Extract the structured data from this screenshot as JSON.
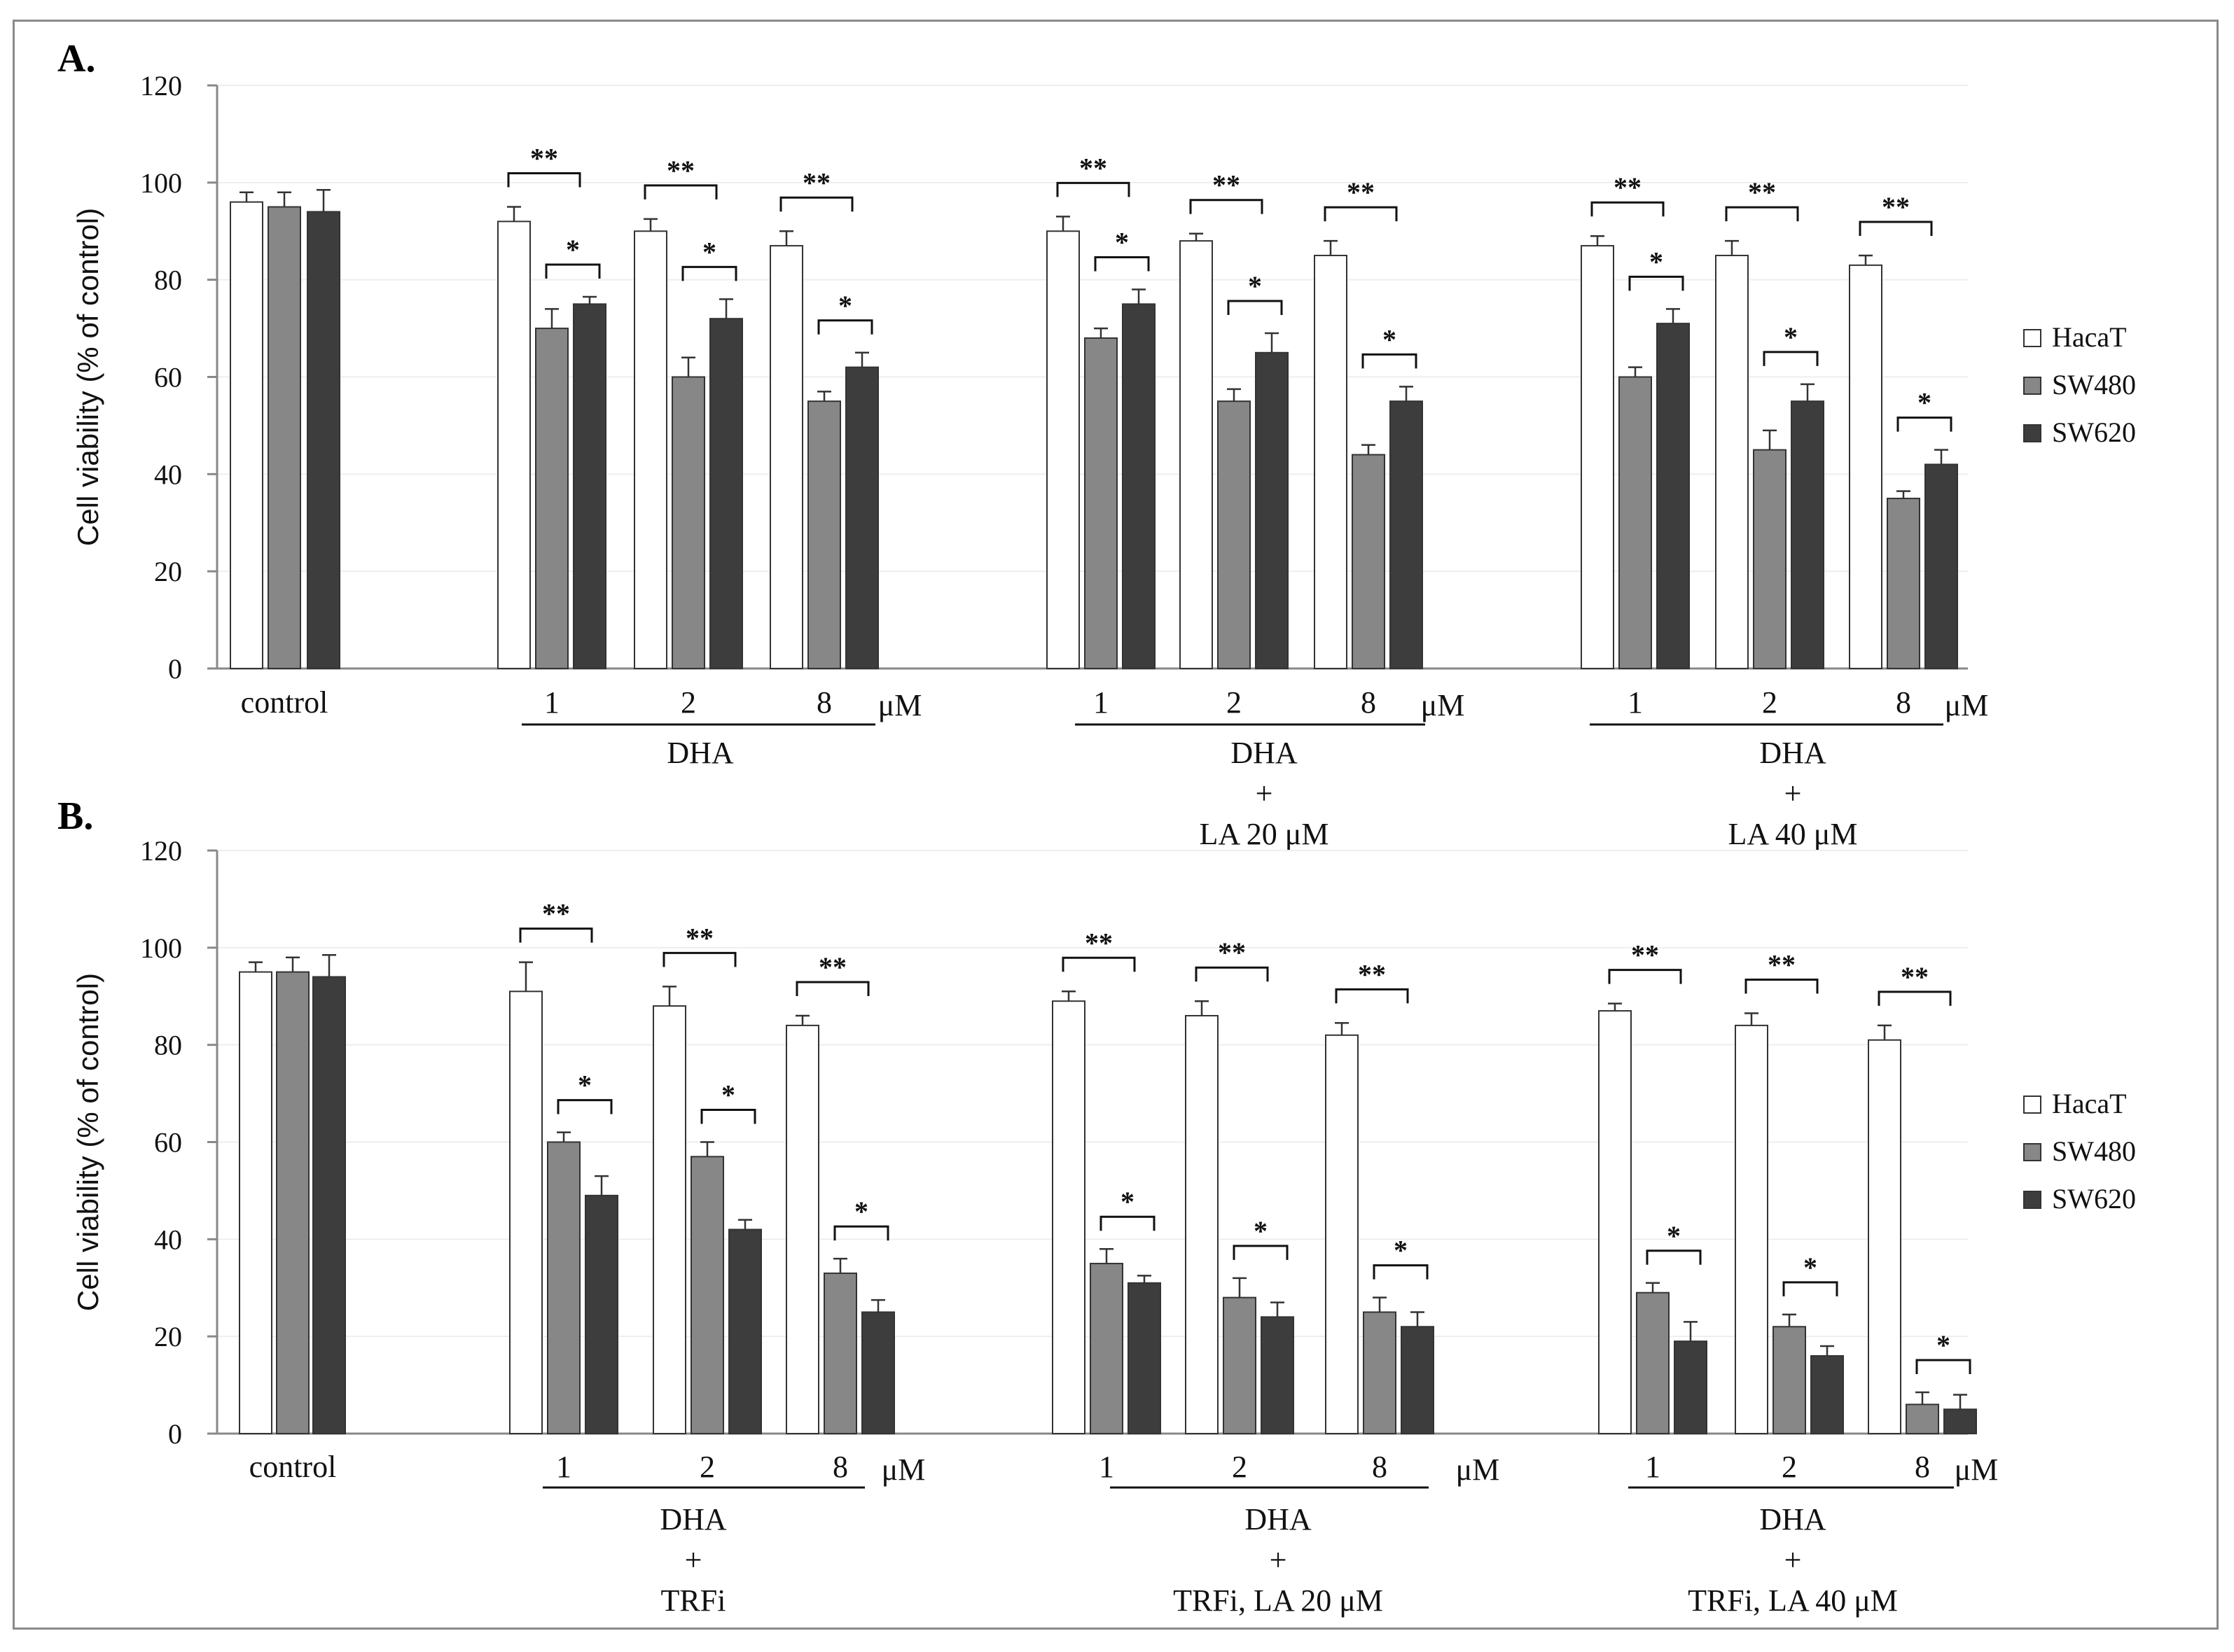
{
  "colors": {
    "hacat": "#ffffff",
    "sw480": "#878787",
    "sw620": "#3d3d3d",
    "axis": "#888888",
    "ink": "#111111"
  },
  "legend": [
    {
      "label": "HacaT",
      "series": "hacat"
    },
    {
      "label": "SW480",
      "series": "sw480"
    },
    {
      "label": "SW620",
      "series": "sw620"
    }
  ],
  "chart_data": [
    {
      "panel": "A.",
      "type": "bar",
      "ylabel": "Cell viability (% of control)",
      "ylim": [
        0,
        120
      ],
      "yticks": [
        0,
        20,
        40,
        60,
        80,
        100,
        120
      ],
      "series_names": [
        "HacaT",
        "SW480",
        "SW620"
      ],
      "control": {
        "label": "control",
        "values": [
          96,
          95,
          94
        ],
        "errors": [
          2,
          3,
          4.5
        ]
      },
      "groups": [
        {
          "label_lines": [
            "DHA"
          ],
          "unit": "μM",
          "categories": [
            "1",
            "2",
            "8"
          ],
          "values": [
            [
              92,
              70,
              75
            ],
            [
              90,
              60,
              72
            ],
            [
              87,
              55,
              62
            ]
          ],
          "errors": [
            [
              3,
              4,
              1.5
            ],
            [
              2.5,
              4,
              4
            ],
            [
              3,
              2,
              3
            ]
          ],
          "sig": [
            [
              "**",
              "*"
            ],
            [
              "**",
              "*"
            ],
            [
              "**",
              "*"
            ]
          ]
        },
        {
          "label_lines": [
            "DHA",
            "+",
            "LA 20 μM"
          ],
          "unit": "μM",
          "categories": [
            "1",
            "2",
            "8"
          ],
          "values": [
            [
              90,
              68,
              75
            ],
            [
              88,
              55,
              65
            ],
            [
              85,
              44,
              55
            ]
          ],
          "errors": [
            [
              3,
              2,
              3
            ],
            [
              1.5,
              2.5,
              4
            ],
            [
              3,
              2,
              3
            ]
          ],
          "sig": [
            [
              "**",
              "*"
            ],
            [
              "**",
              "*"
            ],
            [
              "**",
              "*"
            ]
          ]
        },
        {
          "label_lines": [
            "DHA",
            "+",
            "LA 40 μM"
          ],
          "unit": "μM",
          "categories": [
            "1",
            "2",
            "8"
          ],
          "values": [
            [
              87,
              60,
              71
            ],
            [
              85,
              45,
              55
            ],
            [
              83,
              35,
              42
            ]
          ],
          "errors": [
            [
              2,
              2,
              3
            ],
            [
              3,
              4,
              3.5
            ],
            [
              2,
              1.5,
              3
            ]
          ],
          "sig": [
            [
              "**",
              "*"
            ],
            [
              "**",
              "*"
            ],
            [
              "**",
              "*"
            ]
          ]
        }
      ]
    },
    {
      "panel": "B.",
      "type": "bar",
      "ylabel": "Cell viability (% of control)",
      "ylim": [
        0,
        120
      ],
      "yticks": [
        0,
        20,
        40,
        60,
        80,
        100,
        120
      ],
      "series_names": [
        "HacaT",
        "SW480",
        "SW620"
      ],
      "control": {
        "label": "control",
        "values": [
          95,
          95,
          94
        ],
        "errors": [
          2,
          3,
          4.5
        ]
      },
      "groups": [
        {
          "label_lines": [
            "DHA",
            "+",
            "TRFi"
          ],
          "unit": "μM",
          "categories": [
            "1",
            "2",
            "8"
          ],
          "values": [
            [
              91,
              60,
              49
            ],
            [
              88,
              57,
              42
            ],
            [
              84,
              33,
              25
            ]
          ],
          "errors": [
            [
              6,
              2,
              4
            ],
            [
              4,
              3,
              2
            ],
            [
              2,
              3,
              2.5
            ]
          ],
          "sig": [
            [
              "**",
              "*"
            ],
            [
              "**",
              "*"
            ],
            [
              "**",
              "*"
            ]
          ]
        },
        {
          "label_lines": [
            "DHA",
            "+",
            "TRFi, LA 20 μM"
          ],
          "unit": "μM",
          "categories": [
            "1",
            "2",
            "8"
          ],
          "values": [
            [
              89,
              35,
              31
            ],
            [
              86,
              28,
              24
            ],
            [
              82,
              25,
              22
            ]
          ],
          "errors": [
            [
              2,
              3,
              1.5
            ],
            [
              3,
              4,
              3
            ],
            [
              2.5,
              3,
              3
            ]
          ],
          "sig": [
            [
              "**",
              "*"
            ],
            [
              "**",
              "*"
            ],
            [
              "**",
              "*"
            ]
          ]
        },
        {
          "label_lines": [
            "DHA",
            "+",
            "TRFi, LA 40 μM"
          ],
          "unit": "μM",
          "categories": [
            "1",
            "2",
            "8"
          ],
          "values": [
            [
              87,
              29,
              19
            ],
            [
              84,
              22,
              16
            ],
            [
              81,
              6,
              5
            ]
          ],
          "errors": [
            [
              1.5,
              2,
              4
            ],
            [
              2.5,
              2.5,
              2
            ],
            [
              3,
              2.5,
              3
            ]
          ],
          "sig": [
            [
              "**",
              "*"
            ],
            [
              "**",
              "*"
            ],
            [
              "**",
              "*"
            ]
          ]
        }
      ]
    }
  ]
}
